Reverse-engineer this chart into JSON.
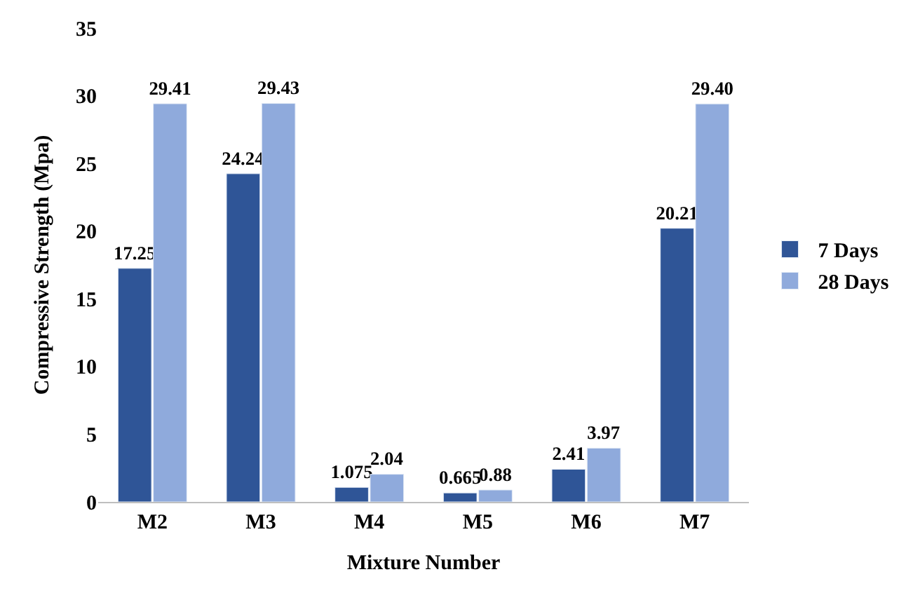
{
  "chart_data": {
    "type": "bar",
    "xlabel": "Mixture Number",
    "ylabel": "Compressive Strength (Mpa)",
    "categories": [
      "M2",
      "M3",
      "M4",
      "M5",
      "M6",
      "M7"
    ],
    "series": [
      {
        "name": "7 Days",
        "color": "#2f5597",
        "values": [
          17.25,
          24.24,
          1.075,
          0.665,
          2.41,
          20.21
        ],
        "value_labels": [
          "17.25",
          "24.24",
          "1.075",
          "0.665",
          "2.41",
          "20.21"
        ]
      },
      {
        "name": "28 Days",
        "color": "#8faadc",
        "values": [
          29.41,
          29.43,
          2.04,
          0.88,
          3.97,
          29.4
        ],
        "value_labels": [
          "29.41",
          "29.43",
          "2.04",
          "0.88",
          "3.97",
          "29.40"
        ]
      }
    ],
    "ylim": [
      0,
      35
    ],
    "yticks": [
      0,
      5,
      10,
      15,
      20,
      25,
      30,
      35
    ],
    "legend": "right"
  }
}
